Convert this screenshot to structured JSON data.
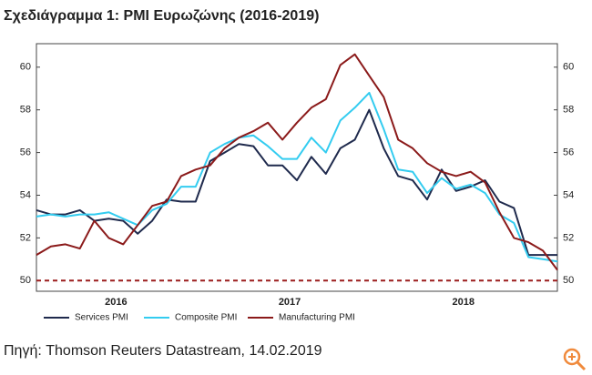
{
  "chart_data": {
    "type": "line",
    "title": "Σχεδιάγραμμα 1: PMI Ευρωζώνης (2016-2019)",
    "source": "Πηγή: Thomson Reuters Datastream, 14.02.2019",
    "categories": [
      null,
      null,
      null,
      null,
      null,
      "2016",
      null,
      null,
      null,
      null,
      null,
      null,
      null,
      null,
      null,
      null,
      null,
      "2017",
      null,
      null,
      null,
      null,
      null,
      null,
      null,
      null,
      null,
      null,
      null,
      "2018",
      null,
      null,
      null,
      null,
      null,
      null,
      null
    ],
    "series": [
      {
        "name": "Services PMI",
        "color": "#1f2a4d",
        "values": [
          53.3,
          53.1,
          53.1,
          53.3,
          52.8,
          52.9,
          52.8,
          52.2,
          52.8,
          53.8,
          53.7,
          53.7,
          55.6,
          56.0,
          56.4,
          56.3,
          55.4,
          55.4,
          54.7,
          55.8,
          55.0,
          56.2,
          56.6,
          58.0,
          56.2,
          54.9,
          54.7,
          53.8,
          55.2,
          54.2,
          54.4,
          54.7,
          53.7,
          53.4,
          51.2,
          51.2,
          51.2
        ]
      },
      {
        "name": "Composite PMI",
        "color": "#33ccf0",
        "values": [
          53.0,
          53.1,
          53.0,
          53.1,
          53.1,
          53.2,
          52.9,
          52.6,
          53.3,
          53.6,
          54.4,
          54.4,
          56.0,
          56.4,
          56.7,
          56.8,
          56.3,
          55.7,
          55.7,
          56.7,
          56.0,
          57.5,
          58.1,
          58.8,
          57.1,
          55.2,
          55.1,
          54.1,
          54.8,
          54.3,
          54.5,
          54.1,
          53.1,
          52.7,
          51.1,
          51.0,
          50.9
        ]
      },
      {
        "name": "Manufacturing PMI",
        "color": "#8b1a1a",
        "values": [
          51.2,
          51.6,
          51.7,
          51.5,
          52.8,
          52.0,
          51.7,
          52.6,
          53.5,
          53.7,
          54.9,
          55.2,
          55.4,
          56.2,
          56.7,
          57.0,
          57.4,
          56.6,
          57.4,
          58.1,
          58.5,
          60.1,
          60.6,
          59.6,
          58.6,
          56.6,
          56.2,
          55.5,
          55.1,
          54.9,
          55.1,
          54.6,
          53.2,
          52.0,
          51.8,
          51.4,
          50.5
        ]
      }
    ],
    "reference_line": 50,
    "ylim": [
      49.5,
      61.1
    ],
    "yticks": [
      50,
      52,
      54,
      56,
      58,
      60
    ],
    "y2lim": [
      49.5,
      61.1
    ],
    "y2ticks": [
      50,
      52,
      54,
      56,
      58,
      60
    ]
  }
}
